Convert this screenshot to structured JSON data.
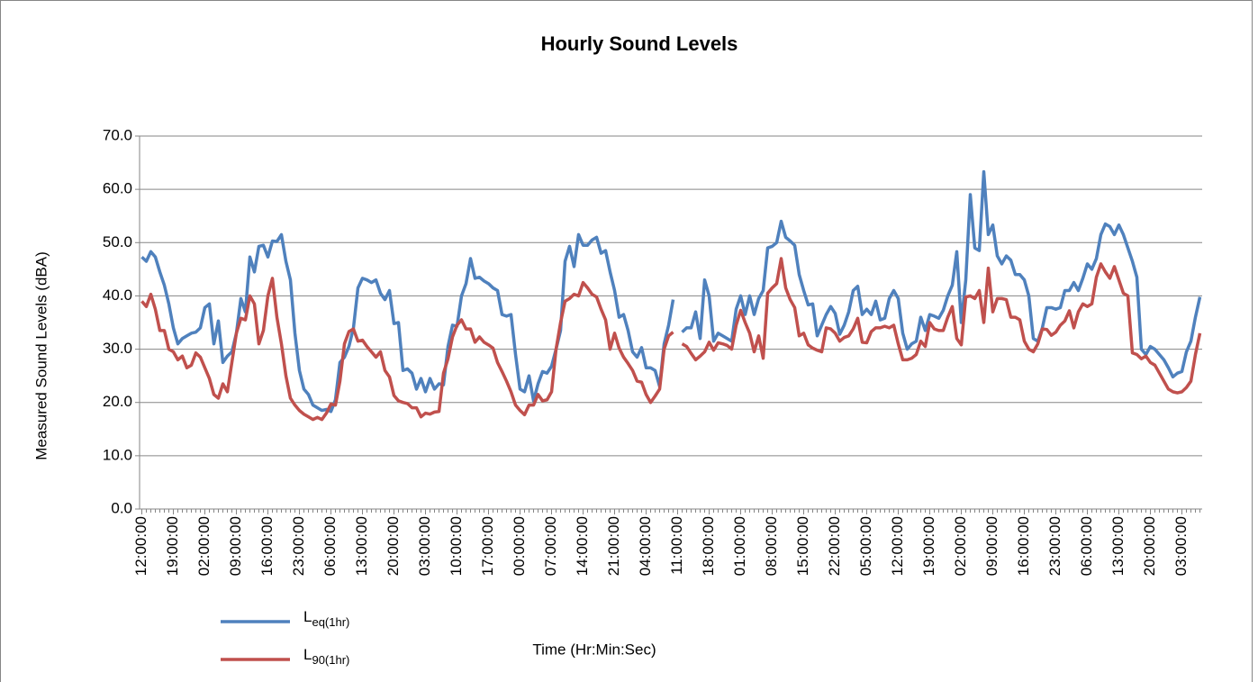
{
  "chart_data": {
    "type": "line",
    "title": "Hourly Sound Levels",
    "x_label": "Time (Hr:Min:Sec)",
    "y_label": "Measured Sound Levels (dBA)",
    "categories": [
      "12:00:00",
      null,
      null,
      null,
      null,
      null,
      null,
      "19:00:00",
      null,
      null,
      null,
      null,
      null,
      null,
      "02:00:00",
      null,
      null,
      null,
      null,
      null,
      null,
      "09:00:00",
      null,
      null,
      null,
      null,
      null,
      null,
      "16:00:00",
      null,
      null,
      null,
      null,
      null,
      null,
      "23:00:00",
      null,
      null,
      null,
      null,
      null,
      null,
      "06:00:00",
      null,
      null,
      null,
      null,
      null,
      null,
      "13:00:00",
      null,
      null,
      null,
      null,
      null,
      null,
      "20:00:00",
      null,
      null,
      null,
      null,
      null,
      null,
      "03:00:00",
      null,
      null,
      null,
      null,
      null,
      null,
      "10:00:00",
      null,
      null,
      null,
      null,
      null,
      null,
      "17:00:00",
      null,
      null,
      null,
      null,
      null,
      null,
      "00:00:00",
      null,
      null,
      null,
      null,
      null,
      null,
      "07:00:00",
      null,
      null,
      null,
      null,
      null,
      null,
      "14:00:00",
      null,
      null,
      null,
      null,
      null,
      null,
      "21:00:00",
      null,
      null,
      null,
      null,
      null,
      null,
      "04:00:00",
      null,
      null,
      null,
      null,
      null,
      null,
      "11:00:00",
      null,
      null,
      null,
      null,
      null,
      null,
      "18:00:00",
      null,
      null,
      null,
      null,
      null,
      null,
      "01:00:00",
      null,
      null,
      null,
      null,
      null,
      null,
      "08:00:00",
      null,
      null,
      null,
      null,
      null,
      null,
      "15:00:00",
      null,
      null,
      null,
      null,
      null,
      null,
      "22:00:00",
      null,
      null,
      null,
      null,
      null,
      null,
      "05:00:00",
      null,
      null,
      null,
      null,
      null,
      null,
      "12:00:00",
      null,
      null,
      null,
      null,
      null,
      null,
      "19:00:00",
      null,
      null,
      null,
      null,
      null,
      null,
      "02:00:00",
      null,
      null,
      null,
      null,
      null,
      null,
      "09:00:00",
      null,
      null,
      null,
      null,
      null,
      null,
      "16:00:00",
      null,
      null,
      null,
      null,
      null,
      null,
      "23:00:00",
      null,
      null,
      null,
      null,
      null,
      null,
      "06:00:00",
      null,
      null,
      null,
      null,
      null,
      null,
      "13:00:00",
      null,
      null,
      null,
      null,
      null,
      null,
      "20:00:00",
      null,
      null,
      null,
      null,
      null,
      null,
      "03:00:00",
      null,
      null,
      null,
      null
    ],
    "series": [
      {
        "name": "Leq(1hr)",
        "color": "#4f81bd",
        "values": [
          47.3,
          46.5,
          48.3,
          47.3,
          44.5,
          42,
          38.5,
          34,
          31,
          32,
          32.5,
          33,
          33.2,
          34,
          37.8,
          38.5,
          31,
          35.3,
          27.5,
          28.7,
          29.5,
          33,
          39.5,
          37,
          47.3,
          44.5,
          49.3,
          49.5,
          47.3,
          50.3,
          50.2,
          51.5,
          46.5,
          43,
          33,
          26,
          22.5,
          21.5,
          19.5,
          19,
          18.5,
          18.7,
          18.3,
          20.5,
          27.5,
          28.5,
          30.5,
          34,
          41.5,
          43.3,
          43,
          42.5,
          43,
          40.5,
          39.3,
          41,
          34.8,
          35,
          26,
          26.3,
          25.5,
          22.5,
          24.5,
          22,
          24.5,
          22.5,
          23.5,
          23.3,
          30.5,
          34.5,
          34.3,
          40,
          42.3,
          47,
          43.3,
          43.5,
          42.8,
          42.3,
          41.5,
          41,
          36.5,
          36.2,
          36.5,
          29,
          22.5,
          22,
          25,
          20.3,
          23.5,
          25.8,
          25.5,
          26.8,
          30,
          33.5,
          46.5,
          49.3,
          45.5,
          51.5,
          49.5,
          49.5,
          50.5,
          51,
          48,
          48.5,
          44.5,
          41,
          36,
          36.5,
          33.5,
          29.5,
          28.5,
          30.3,
          26.5,
          26.5,
          26,
          23,
          31,
          34.5,
          39.3,
          null,
          33.2,
          34,
          34,
          37,
          32,
          43,
          40,
          31.5,
          33,
          32.5,
          32,
          31.5,
          37.5,
          40,
          36.5,
          40,
          36.5,
          39.5,
          41,
          49,
          49.3,
          50,
          54,
          51,
          50.3,
          49.5,
          44,
          41,
          38.3,
          38.5,
          32.5,
          34.5,
          36.5,
          38,
          36.7,
          32.8,
          34.5,
          37,
          41,
          41.8,
          36.5,
          37.5,
          36.5,
          39,
          35.5,
          35.8,
          39.5,
          41,
          39.5,
          33,
          30,
          31,
          31.5,
          36,
          33.5,
          36.5,
          36.2,
          35.8,
          37.3,
          40,
          42,
          48.3,
          35,
          43,
          59,
          49,
          48.5,
          63.3,
          51.5,
          53.3,
          47.5,
          46,
          47.5,
          46.7,
          44,
          44,
          43,
          40,
          32,
          31.5,
          34,
          37.8,
          37.8,
          37.5,
          37.8,
          41,
          41,
          42.5,
          41,
          43.3,
          46,
          45,
          47,
          51.5,
          53.5,
          53,
          51.5,
          53.3,
          51.5,
          49,
          46.5,
          43.5,
          30,
          29,
          30.5,
          30,
          29,
          28,
          26.5,
          24.8,
          25.5,
          25.8,
          29.5,
          31.5,
          36,
          39.8
        ]
      },
      {
        "name": "L90(1hr)",
        "color": "#c0504d",
        "values": [
          39,
          38,
          40.3,
          37.5,
          33.5,
          33.5,
          30,
          29.5,
          28,
          28.7,
          26.5,
          27,
          29.3,
          28.5,
          26.5,
          24.5,
          21.5,
          20.8,
          23.5,
          22,
          27.5,
          33,
          35.8,
          35.5,
          40,
          38.5,
          31,
          33.5,
          40,
          43.3,
          36,
          31,
          25,
          20.8,
          19.5,
          18.5,
          17.8,
          17.3,
          16.8,
          17.2,
          16.8,
          18,
          19.7,
          19.5,
          24,
          31,
          33.3,
          33.8,
          31.5,
          31.7,
          30.5,
          29.5,
          28.5,
          29.5,
          26,
          24.8,
          21.3,
          20.3,
          20,
          19.8,
          19,
          19,
          17.3,
          18,
          17.8,
          18.2,
          18.3,
          25.5,
          28.2,
          32.3,
          34.5,
          35.5,
          33.8,
          33.8,
          31.3,
          32.3,
          31.3,
          30.8,
          30.2,
          27.5,
          25.8,
          24,
          22,
          19.5,
          18.5,
          17.7,
          19.5,
          19.5,
          21.5,
          20.3,
          20.5,
          22,
          30,
          35,
          39,
          39.5,
          40.3,
          40,
          42.5,
          41.5,
          40.3,
          39.8,
          37.5,
          35.5,
          30,
          33,
          30.2,
          28.5,
          27.3,
          26,
          24,
          23.8,
          21.5,
          20,
          21.2,
          22.5,
          30,
          32.5,
          33.2,
          null,
          31,
          30.5,
          29.2,
          28,
          28.7,
          29.5,
          31.3,
          29.8,
          31.2,
          31,
          30.7,
          30,
          34.5,
          37.3,
          35,
          33,
          29.5,
          32.5,
          28.3,
          40.5,
          41.5,
          42.3,
          47,
          41.5,
          39.3,
          37.8,
          32.5,
          33,
          30.8,
          30.2,
          29.8,
          29.5,
          34,
          33.8,
          33,
          31.5,
          32.2,
          32.5,
          33.8,
          35.8,
          31.3,
          31.2,
          33.3,
          34,
          34,
          34.3,
          34,
          34.5,
          31,
          28,
          28,
          28.3,
          29,
          31.5,
          30.5,
          35,
          33.8,
          33.5,
          33.5,
          36,
          38,
          32,
          30.8,
          39.8,
          40,
          39.5,
          41,
          35,
          45.2,
          37,
          39.5,
          39.5,
          39.3,
          36,
          36,
          35.5,
          31.5,
          30,
          29.5,
          31,
          33.8,
          33.7,
          32.6,
          33.2,
          34.5,
          35.3,
          37.2,
          34,
          37,
          38.5,
          38,
          38.5,
          43.5,
          46,
          44.5,
          43.3,
          45.5,
          43,
          40.5,
          40,
          29.3,
          29,
          28.2,
          28.7,
          27.5,
          27,
          25.5,
          24,
          22.5,
          22,
          21.8,
          22,
          22.8,
          24,
          29,
          33
        ]
      }
    ],
    "ylim": [
      0,
      70
    ],
    "yticks": [
      {
        "value": 0,
        "label": "0.0"
      },
      {
        "value": 10,
        "label": "10.0"
      },
      {
        "value": 20,
        "label": "20.0"
      },
      {
        "value": 30,
        "label": "30.0"
      },
      {
        "value": 40,
        "label": "40.0"
      },
      {
        "value": 50,
        "label": "50.0"
      },
      {
        "value": 60,
        "label": "60.0"
      },
      {
        "value": 70,
        "label": "70.0"
      }
    ],
    "grid": true,
    "legend": "lower left"
  }
}
